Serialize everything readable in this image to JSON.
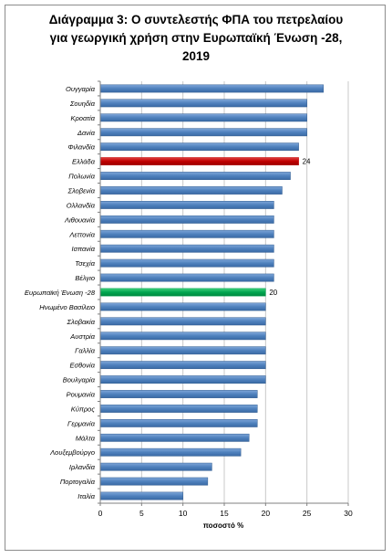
{
  "chart_data": {
    "type": "bar",
    "orientation": "horizontal",
    "title_lines": [
      "Διάγραμμα 3: Ο συντελεστής ΦΠΑ του πετρελαίου",
      "για γεωργική  χρήση στην Ευρωπαϊκή Ένωση -28,",
      "2019"
    ],
    "xlabel": "ποσοστό %",
    "ylabel": "",
    "xlim": [
      0,
      30
    ],
    "xticks": [
      0,
      5,
      10,
      15,
      20,
      25,
      30
    ],
    "grid": true,
    "legend": "none",
    "categories": [
      "Ουγγαρία",
      "Σουηδία",
      "Κροατία",
      "Δανία",
      "Φιλανδία",
      "Ελλάδα",
      "Πολωνία",
      "Σλοβενία",
      "Ολλανδία",
      "Λιθουανία",
      "Λεττονία",
      "Ισπανία",
      "Τσεχία",
      "Βέλγιο",
      "Ευρωπαϊκή Ένωση -28",
      "Ηνωμένο Βασίλειο",
      "Σλοβακία",
      "Αυστρία",
      "Γαλλία",
      "Εσθονία",
      "Βουλγαρία",
      "Ρουμανία",
      "Κύπρος",
      "Γερμανία",
      "Μάλτα",
      "Λουξεμβούργο",
      "Ιρλανδία",
      "Πορτογαλία",
      "Ιταλία"
    ],
    "values": [
      27,
      25,
      25,
      25,
      24,
      24,
      23,
      22,
      21,
      21,
      21,
      21,
      21,
      21,
      20,
      20,
      20,
      20,
      20,
      20,
      20,
      19,
      19,
      19,
      18,
      17,
      13.5,
      13,
      10
    ],
    "highlight": {
      "Ελλάδα": {
        "color": "#c00000",
        "label": "24"
      },
      "Ευρωπαϊκή Ένωση -28": {
        "color": "#00a550",
        "label": "20"
      }
    },
    "colors": {
      "default_bar": "#4f81bd",
      "bar_edge": "#2f5a8f",
      "grid": "#c8c8c8",
      "axis": "#7f7f7f"
    }
  }
}
